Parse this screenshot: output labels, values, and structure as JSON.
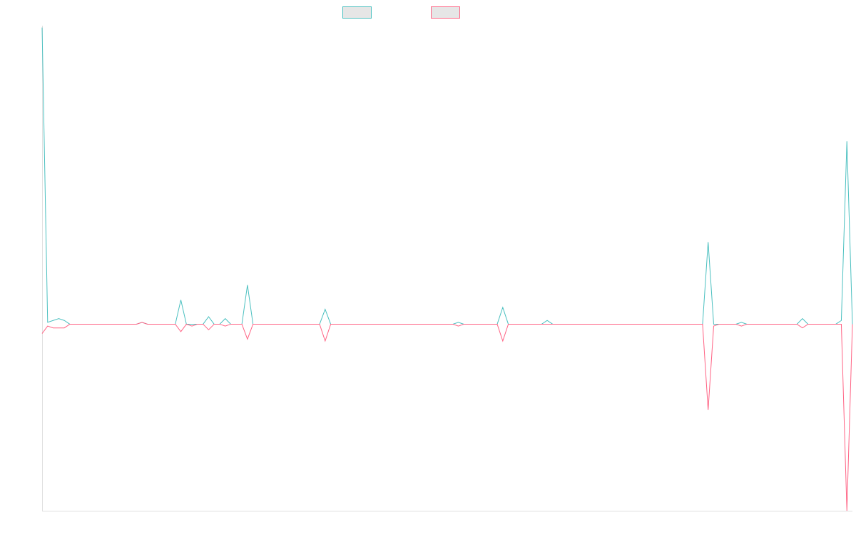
{
  "chart_data": {
    "type": "line",
    "ylim": [
      -1,
      1.6
    ],
    "series": [
      {
        "color": "#4bc0c0",
        "values": [
          1.59,
          0.01,
          0.02,
          0.03,
          0.02,
          0,
          0,
          0,
          0,
          0,
          0,
          0,
          0,
          0,
          0,
          0,
          0,
          0,
          0.01,
          0,
          0,
          0,
          0,
          0,
          0,
          0.13,
          0,
          0,
          0,
          0,
          0.04,
          0,
          0,
          0.03,
          0,
          0,
          0,
          0.21,
          0,
          0,
          0,
          0,
          0,
          0,
          0,
          0,
          0,
          0,
          0,
          0,
          0,
          0.08,
          0,
          0,
          0,
          0,
          0,
          0,
          0,
          0,
          0,
          0,
          0,
          0,
          0,
          0,
          0,
          0,
          0,
          0,
          0,
          0,
          0,
          0,
          0,
          0.01,
          0,
          0,
          0,
          0,
          0,
          0,
          0,
          0.09,
          0,
          0,
          0,
          0,
          0,
          0,
          0,
          0.02,
          0,
          0,
          0,
          0,
          0,
          0,
          0,
          0,
          0,
          0,
          0,
          0,
          0,
          0,
          0,
          0,
          0,
          0,
          0,
          0,
          0,
          0,
          0,
          0,
          0,
          0,
          0,
          0,
          0.44,
          0,
          0,
          0,
          0,
          0,
          0.01,
          0,
          0,
          0,
          0,
          0,
          0,
          0,
          0,
          0,
          0,
          0.03,
          0,
          0,
          0,
          0,
          0,
          0,
          0.02,
          0.98,
          0
        ]
      },
      {
        "color": "#ff6384",
        "values": [
          -0.05,
          -0.01,
          -0.02,
          -0.02,
          -0.02,
          0,
          0,
          0,
          0,
          0,
          0,
          0,
          0,
          0,
          0,
          0,
          0,
          0,
          0.01,
          0,
          0,
          0,
          0,
          0,
          0,
          -0.04,
          0,
          -0.01,
          0,
          0,
          -0.03,
          0,
          0,
          -0.01,
          0,
          0,
          0,
          -0.08,
          0,
          0,
          0,
          0,
          0,
          0,
          0,
          0,
          0,
          0,
          0,
          0,
          0,
          -0.09,
          0,
          0,
          0,
          0,
          0,
          0,
          0,
          0,
          0,
          0,
          0,
          0,
          0,
          0,
          0,
          0,
          0,
          0,
          0,
          0,
          0,
          0,
          0,
          -0.01,
          0,
          0,
          0,
          0,
          0,
          0,
          0,
          -0.09,
          0,
          0,
          0,
          0,
          0,
          0,
          0,
          0,
          0,
          0,
          0,
          0,
          0,
          0,
          0,
          0,
          0,
          0,
          0,
          0,
          0,
          0,
          0,
          0,
          0,
          0,
          0,
          0,
          0,
          0,
          0,
          0,
          0,
          0,
          0,
          0,
          -0.46,
          -0.01,
          0,
          0,
          0,
          0,
          -0.01,
          0,
          0,
          0,
          0,
          0,
          0,
          0,
          0,
          0,
          0,
          -0.02,
          0,
          0,
          0,
          0,
          0,
          0,
          0,
          -1,
          0
        ]
      }
    ]
  }
}
